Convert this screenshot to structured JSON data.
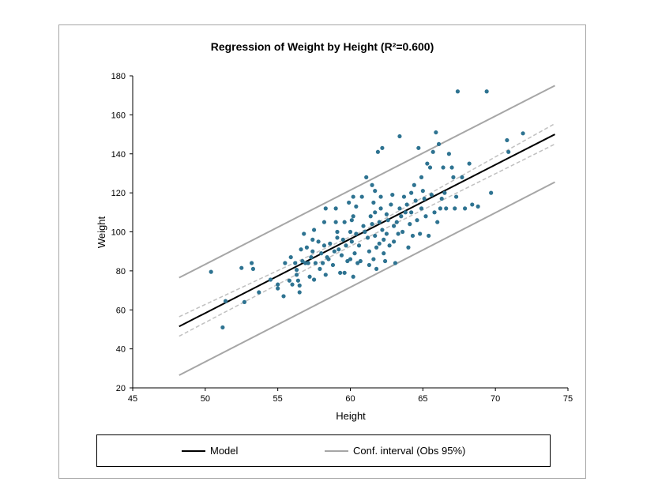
{
  "chart_data": {
    "type": "scatter",
    "title": "Regression of Weight by Height (R²=0.600)",
    "xlabel": "Height",
    "ylabel": "Weight",
    "xlim": [
      45,
      75
    ],
    "ylim": [
      20,
      180
    ],
    "xticks": [
      45,
      50,
      55,
      60,
      65,
      70,
      75
    ],
    "yticks": [
      20,
      40,
      60,
      80,
      100,
      120,
      140,
      160,
      180
    ],
    "grid": false,
    "legend_position": "bottom",
    "colors": {
      "points": "#2e7391",
      "model": "#000000",
      "obs_interval": "#a6a6a6",
      "mean_interval": "#c0c0c0"
    },
    "model": {
      "name": "Model",
      "x": [
        48.2,
        74.1
      ],
      "y": [
        51.5,
        150.0
      ]
    },
    "obs_interval": {
      "name": "Conf. interval (Obs 95%)",
      "upper": {
        "x": [
          48.2,
          74.1
        ],
        "y": [
          76.5,
          175.0
        ]
      },
      "lower": {
        "x": [
          48.2,
          74.1
        ],
        "y": [
          26.5,
          125.5
        ]
      }
    },
    "mean_interval": {
      "upper": {
        "x": [
          48.2,
          61.0,
          74.1
        ],
        "y": [
          56.5,
          101.0,
          155.5
        ]
      },
      "lower": {
        "x": [
          48.2,
          61.0,
          74.1
        ],
        "y": [
          46.5,
          96.5,
          145.0
        ]
      }
    },
    "points": [
      [
        50.4,
        79.5
      ],
      [
        51.2,
        51
      ],
      [
        51.4,
        64.5
      ],
      [
        52.5,
        81.5
      ],
      [
        52.7,
        64
      ],
      [
        53.2,
        84
      ],
      [
        53.3,
        81
      ],
      [
        53.7,
        69
      ],
      [
        54.5,
        75.5
      ],
      [
        55.0,
        73
      ],
      [
        55.0,
        71
      ],
      [
        55.4,
        67
      ],
      [
        55.5,
        84
      ],
      [
        55.8,
        75
      ],
      [
        55.9,
        87
      ],
      [
        56.0,
        73
      ],
      [
        56.2,
        84
      ],
      [
        56.3,
        80.5
      ],
      [
        56.3,
        78
      ],
      [
        56.4,
        75
      ],
      [
        56.5,
        72.5
      ],
      [
        56.5,
        69
      ],
      [
        56.6,
        91
      ],
      [
        56.7,
        85
      ],
      [
        56.8,
        99
      ],
      [
        56.9,
        84
      ],
      [
        57.0,
        92
      ],
      [
        57.1,
        84
      ],
      [
        57.2,
        77
      ],
      [
        57.3,
        87
      ],
      [
        57.4,
        96
      ],
      [
        57.4,
        90
      ],
      [
        57.5,
        75.5
      ],
      [
        57.5,
        101
      ],
      [
        57.6,
        84
      ],
      [
        57.8,
        95
      ],
      [
        57.9,
        81
      ],
      [
        58.0,
        89
      ],
      [
        58.1,
        84
      ],
      [
        58.2,
        105
      ],
      [
        58.2,
        93
      ],
      [
        58.3,
        112
      ],
      [
        58.3,
        78
      ],
      [
        58.4,
        87
      ],
      [
        58.5,
        86
      ],
      [
        58.6,
        94
      ],
      [
        58.8,
        83
      ],
      [
        58.9,
        90
      ],
      [
        59.0,
        105
      ],
      [
        59.0,
        112
      ],
      [
        59.1,
        100
      ],
      [
        59.1,
        97
      ],
      [
        59.2,
        91
      ],
      [
        59.3,
        79
      ],
      [
        59.4,
        88
      ],
      [
        59.5,
        96
      ],
      [
        59.6,
        79
      ],
      [
        59.6,
        105
      ],
      [
        59.7,
        93
      ],
      [
        59.8,
        85
      ],
      [
        59.9,
        115
      ],
      [
        60.0,
        100
      ],
      [
        60.0,
        86
      ],
      [
        60.1,
        106
      ],
      [
        60.1,
        95
      ],
      [
        60.2,
        118
      ],
      [
        60.2,
        108
      ],
      [
        60.2,
        77
      ],
      [
        60.3,
        89
      ],
      [
        60.4,
        113
      ],
      [
        60.4,
        99
      ],
      [
        60.5,
        84
      ],
      [
        60.6,
        93
      ],
      [
        60.7,
        85
      ],
      [
        60.8,
        118
      ],
      [
        60.9,
        103
      ],
      [
        61.0,
        100
      ],
      [
        61.1,
        128
      ],
      [
        61.2,
        97
      ],
      [
        61.3,
        90
      ],
      [
        61.3,
        83
      ],
      [
        61.4,
        108
      ],
      [
        61.5,
        124
      ],
      [
        61.5,
        104
      ],
      [
        61.6,
        86
      ],
      [
        61.6,
        115
      ],
      [
        61.7,
        121
      ],
      [
        61.7,
        110
      ],
      [
        61.7,
        98
      ],
      [
        61.8,
        81
      ],
      [
        61.8,
        92
      ],
      [
        61.9,
        141
      ],
      [
        62.0,
        105
      ],
      [
        62.0,
        94
      ],
      [
        62.1,
        118
      ],
      [
        62.1,
        112
      ],
      [
        62.2,
        143
      ],
      [
        62.2,
        101
      ],
      [
        62.3,
        96
      ],
      [
        62.3,
        89
      ],
      [
        62.4,
        85
      ],
      [
        62.5,
        109
      ],
      [
        62.5,
        99
      ],
      [
        62.6,
        106
      ],
      [
        62.7,
        93
      ],
      [
        62.8,
        114
      ],
      [
        62.9,
        119
      ],
      [
        63.0,
        103
      ],
      [
        63.0,
        95
      ],
      [
        63.1,
        84
      ],
      [
        63.2,
        105
      ],
      [
        63.3,
        99
      ],
      [
        63.4,
        149
      ],
      [
        63.4,
        112
      ],
      [
        63.5,
        108
      ],
      [
        63.6,
        100
      ],
      [
        63.7,
        118
      ],
      [
        63.8,
        110
      ],
      [
        63.9,
        114
      ],
      [
        64.0,
        92
      ],
      [
        64.1,
        104
      ],
      [
        64.2,
        120
      ],
      [
        64.2,
        110
      ],
      [
        64.3,
        98
      ],
      [
        64.4,
        124
      ],
      [
        64.5,
        116
      ],
      [
        64.6,
        106
      ],
      [
        64.7,
        143
      ],
      [
        64.8,
        99
      ],
      [
        64.9,
        128
      ],
      [
        64.9,
        112
      ],
      [
        65.0,
        121
      ],
      [
        65.1,
        117
      ],
      [
        65.2,
        108
      ],
      [
        65.3,
        135
      ],
      [
        65.4,
        98
      ],
      [
        65.5,
        133
      ],
      [
        65.6,
        119
      ],
      [
        65.7,
        141
      ],
      [
        65.8,
        110
      ],
      [
        65.9,
        151
      ],
      [
        66.0,
        105
      ],
      [
        66.1,
        145
      ],
      [
        66.2,
        112
      ],
      [
        66.3,
        117
      ],
      [
        66.4,
        133
      ],
      [
        66.5,
        120
      ],
      [
        66.6,
        112
      ],
      [
        66.8,
        140
      ],
      [
        67.0,
        133
      ],
      [
        67.1,
        128
      ],
      [
        67.2,
        112
      ],
      [
        67.3,
        118
      ],
      [
        67.4,
        172
      ],
      [
        67.7,
        128
      ],
      [
        67.9,
        112
      ],
      [
        68.2,
        135
      ],
      [
        68.4,
        114
      ],
      [
        68.8,
        113
      ],
      [
        69.4,
        172
      ],
      [
        69.7,
        120
      ],
      [
        70.8,
        147
      ],
      [
        70.9,
        141
      ],
      [
        71.9,
        150.5
      ]
    ]
  }
}
